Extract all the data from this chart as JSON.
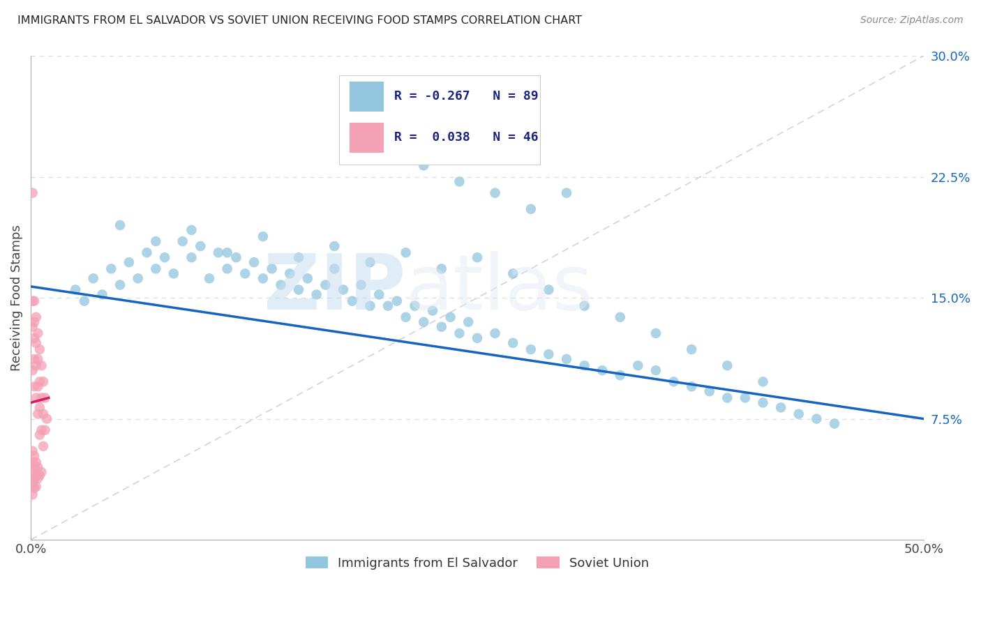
{
  "title": "IMMIGRANTS FROM EL SALVADOR VS SOVIET UNION RECEIVING FOOD STAMPS CORRELATION CHART",
  "source": "Source: ZipAtlas.com",
  "ylabel": "Receiving Food Stamps",
  "xlim": [
    0.0,
    0.5
  ],
  "ylim": [
    0.0,
    0.3
  ],
  "ytick_vals": [
    0.075,
    0.15,
    0.225,
    0.3
  ],
  "ytick_labels": [
    "7.5%",
    "15.0%",
    "22.5%",
    "30.0%"
  ],
  "legend_label1": "Immigrants from El Salvador",
  "legend_label2": "Soviet Union",
  "r1": -0.267,
  "n1": 89,
  "r2": 0.038,
  "n2": 46,
  "color_blue": "#92c5de",
  "color_pink": "#f4a0b5",
  "line_blue": "#1565c0",
  "line_pink": "#d81b60",
  "diagonal_color": "#ccbbcc",
  "grid_color": "#dddddd",
  "el_salvador_x": [
    0.025,
    0.03,
    0.035,
    0.04,
    0.045,
    0.05,
    0.055,
    0.06,
    0.065,
    0.07,
    0.075,
    0.08,
    0.085,
    0.09,
    0.095,
    0.1,
    0.105,
    0.11,
    0.115,
    0.12,
    0.125,
    0.13,
    0.135,
    0.14,
    0.145,
    0.15,
    0.155,
    0.16,
    0.165,
    0.17,
    0.175,
    0.18,
    0.185,
    0.19,
    0.195,
    0.2,
    0.205,
    0.21,
    0.215,
    0.22,
    0.225,
    0.23,
    0.235,
    0.24,
    0.245,
    0.25,
    0.26,
    0.27,
    0.28,
    0.29,
    0.3,
    0.31,
    0.32,
    0.33,
    0.34,
    0.35,
    0.36,
    0.37,
    0.38,
    0.39,
    0.4,
    0.41,
    0.42,
    0.43,
    0.44,
    0.45,
    0.05,
    0.07,
    0.09,
    0.11,
    0.13,
    0.15,
    0.17,
    0.19,
    0.21,
    0.23,
    0.25,
    0.27,
    0.29,
    0.31,
    0.33,
    0.35,
    0.37,
    0.39,
    0.41,
    0.22,
    0.24,
    0.26,
    0.28,
    0.3
  ],
  "el_salvador_y": [
    0.155,
    0.148,
    0.162,
    0.152,
    0.168,
    0.158,
    0.172,
    0.162,
    0.178,
    0.168,
    0.175,
    0.165,
    0.185,
    0.175,
    0.182,
    0.162,
    0.178,
    0.168,
    0.175,
    0.165,
    0.172,
    0.162,
    0.168,
    0.158,
    0.165,
    0.155,
    0.162,
    0.152,
    0.158,
    0.168,
    0.155,
    0.148,
    0.158,
    0.145,
    0.152,
    0.145,
    0.148,
    0.138,
    0.145,
    0.135,
    0.142,
    0.132,
    0.138,
    0.128,
    0.135,
    0.125,
    0.128,
    0.122,
    0.118,
    0.115,
    0.112,
    0.108,
    0.105,
    0.102,
    0.108,
    0.105,
    0.098,
    0.095,
    0.092,
    0.088,
    0.088,
    0.085,
    0.082,
    0.078,
    0.075,
    0.072,
    0.195,
    0.185,
    0.192,
    0.178,
    0.188,
    0.175,
    0.182,
    0.172,
    0.178,
    0.168,
    0.175,
    0.165,
    0.155,
    0.145,
    0.138,
    0.128,
    0.118,
    0.108,
    0.098,
    0.232,
    0.222,
    0.215,
    0.205,
    0.215
  ],
  "soviet_x": [
    0.001,
    0.001,
    0.001,
    0.001,
    0.002,
    0.002,
    0.002,
    0.002,
    0.002,
    0.003,
    0.003,
    0.003,
    0.003,
    0.004,
    0.004,
    0.004,
    0.004,
    0.005,
    0.005,
    0.005,
    0.005,
    0.006,
    0.006,
    0.006,
    0.007,
    0.007,
    0.007,
    0.008,
    0.008,
    0.009,
    0.001,
    0.001,
    0.001,
    0.001,
    0.001,
    0.002,
    0.002,
    0.002,
    0.002,
    0.003,
    0.003,
    0.003,
    0.004,
    0.004,
    0.005,
    0.006
  ],
  "soviet_y": [
    0.215,
    0.148,
    0.132,
    0.105,
    0.148,
    0.135,
    0.125,
    0.112,
    0.095,
    0.138,
    0.122,
    0.108,
    0.088,
    0.128,
    0.112,
    0.095,
    0.078,
    0.118,
    0.098,
    0.082,
    0.065,
    0.108,
    0.088,
    0.068,
    0.098,
    0.078,
    0.058,
    0.088,
    0.068,
    0.075,
    0.055,
    0.048,
    0.042,
    0.035,
    0.028,
    0.052,
    0.045,
    0.038,
    0.032,
    0.048,
    0.04,
    0.033,
    0.045,
    0.038,
    0.04,
    0.042
  ],
  "es_line_x": [
    0.0,
    0.5
  ],
  "es_line_y": [
    0.157,
    0.075
  ],
  "su_line_x": [
    0.0,
    0.01
  ],
  "su_line_y": [
    0.085,
    0.088
  ]
}
